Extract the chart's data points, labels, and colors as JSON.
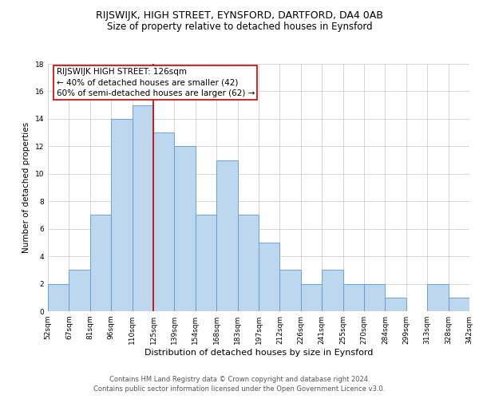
{
  "title": "RIJSWIJK, HIGH STREET, EYNSFORD, DARTFORD, DA4 0AB",
  "subtitle": "Size of property relative to detached houses in Eynsford",
  "xlabel": "Distribution of detached houses by size in Eynsford",
  "ylabel": "Number of detached properties",
  "bar_values": [
    2,
    3,
    7,
    14,
    15,
    13,
    12,
    7,
    11,
    7,
    5,
    3,
    2,
    3,
    2,
    2,
    1,
    0,
    2,
    1
  ],
  "bar_labels": [
    "52sqm",
    "67sqm",
    "81sqm",
    "96sqm",
    "110sqm",
    "125sqm",
    "139sqm",
    "154sqm",
    "168sqm",
    "183sqm",
    "197sqm",
    "212sqm",
    "226sqm",
    "241sqm",
    "255sqm",
    "270sqm",
    "284sqm",
    "299sqm",
    "313sqm",
    "328sqm",
    "342sqm"
  ],
  "bar_color": "#bdd7ee",
  "bar_edge_color": "#5b9bd5",
  "vline_x": 5.0,
  "vline_color": "#cc0000",
  "annotation_text": "RIJSWIJK HIGH STREET: 126sqm\n← 40% of detached houses are smaller (42)\n60% of semi-detached houses are larger (62) →",
  "ylim": [
    0,
    18
  ],
  "yticks": [
    0,
    2,
    4,
    6,
    8,
    10,
    12,
    14,
    16,
    18
  ],
  "footer_text": "Contains HM Land Registry data © Crown copyright and database right 2024.\nContains public sector information licensed under the Open Government Licence v3.0.",
  "background_color": "#ffffff",
  "grid_color": "#c8c8c8",
  "title_fontsize": 9,
  "subtitle_fontsize": 8.5,
  "xlabel_fontsize": 8,
  "ylabel_fontsize": 7.5,
  "tick_fontsize": 6.5,
  "annotation_fontsize": 7.5,
  "footer_fontsize": 6
}
